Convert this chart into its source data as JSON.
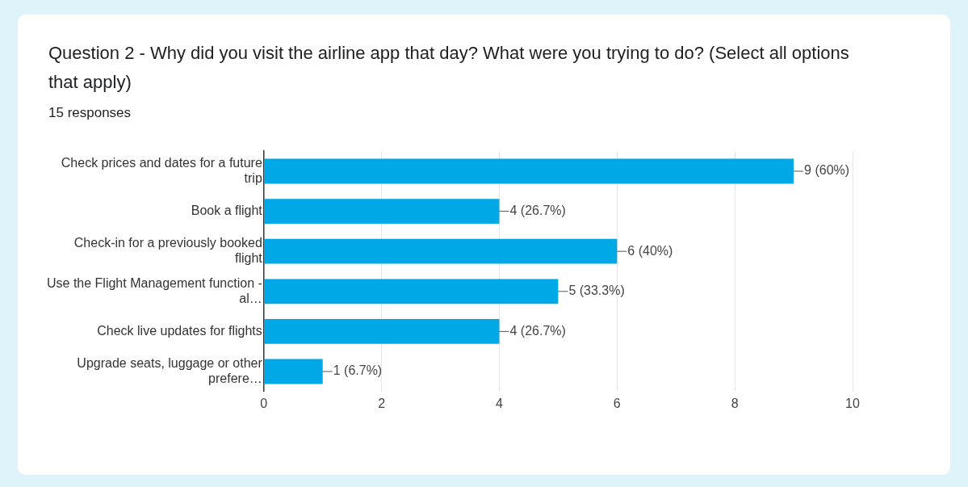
{
  "chart_data": {
    "type": "bar",
    "orientation": "horizontal",
    "title": "Question 2 - Why did you visit the airline app that day? What were you trying to do? (Select all options that apply)",
    "subtitle": "15 responses",
    "categories": [
      "Check prices and dates for a future trip",
      "Book a flight",
      "Check-in for a previously booked flight",
      "Use the Flight Management function - al…",
      "Check live updates for flights",
      "Upgrade seats, luggage or other prefere…"
    ],
    "values": [
      9,
      4,
      6,
      5,
      4,
      1
    ],
    "value_labels": [
      "9 (60%)",
      "4 (26.7%)",
      "6 (40%)",
      "5 (33.3%)",
      "4 (26.7%)",
      "1 (6.7%)"
    ],
    "color": "#00a8e6",
    "xlim": [
      0,
      10
    ],
    "xticks": [
      0,
      2,
      4,
      6,
      8,
      10
    ],
    "grid": "x",
    "legend": false
  }
}
